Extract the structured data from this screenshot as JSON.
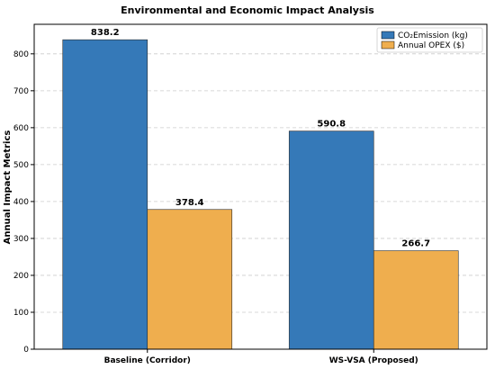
{
  "chart_data": {
    "type": "bar",
    "title": "Environmental and Economic Impact Analysis",
    "xlabel": "",
    "ylabel": "Annual Impact Metrics",
    "categories": [
      "Baseline (Corridor)",
      "WS-VSA (Proposed)"
    ],
    "series": [
      {
        "name": "CO₂Emission (kg)",
        "values": [
          838.2,
          590.8
        ],
        "color": "#3579b8",
        "labels": [
          "838.2",
          "590.8"
        ]
      },
      {
        "name": "Annual OPEX ($)",
        "values": [
          378.4,
          266.7
        ],
        "color": "#efae4e",
        "labels": [
          "378.4",
          "266.7"
        ]
      }
    ],
    "ylim": [
      0,
      880
    ],
    "yticks": [
      "0",
      "100",
      "200",
      "300",
      "400",
      "500",
      "600",
      "700",
      "800"
    ],
    "grid": true,
    "legend_position": "top-right"
  }
}
